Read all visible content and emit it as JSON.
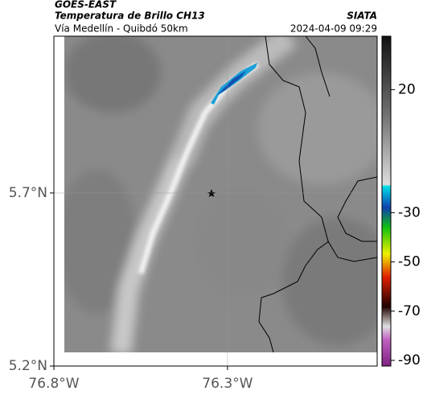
{
  "header": {
    "source": "GOES-EAST",
    "title": "Temperatura de Brillo CH13",
    "subtitle": "Vía Medellín - Quibdó 50km",
    "brand": "SIATA",
    "timestamp": "2024-04-09 09:29"
  },
  "map": {
    "latlim": [
      5.2,
      6.153
    ],
    "lonlim": [
      -76.8,
      -75.869
    ],
    "latticks": [
      {
        "value": 5.7,
        "label": "5.7°N"
      },
      {
        "value": 5.2,
        "label": "5.2°N"
      }
    ],
    "lonticks": [
      {
        "value": -76.8,
        "label": "76.8°W"
      },
      {
        "value": -76.3,
        "label": "76.3°W"
      }
    ]
  },
  "colorbar": {
    "lim": [
      -92.3,
      41.7
    ],
    "ticks": [
      20,
      -30,
      -50,
      -70,
      -90
    ]
  }
}
